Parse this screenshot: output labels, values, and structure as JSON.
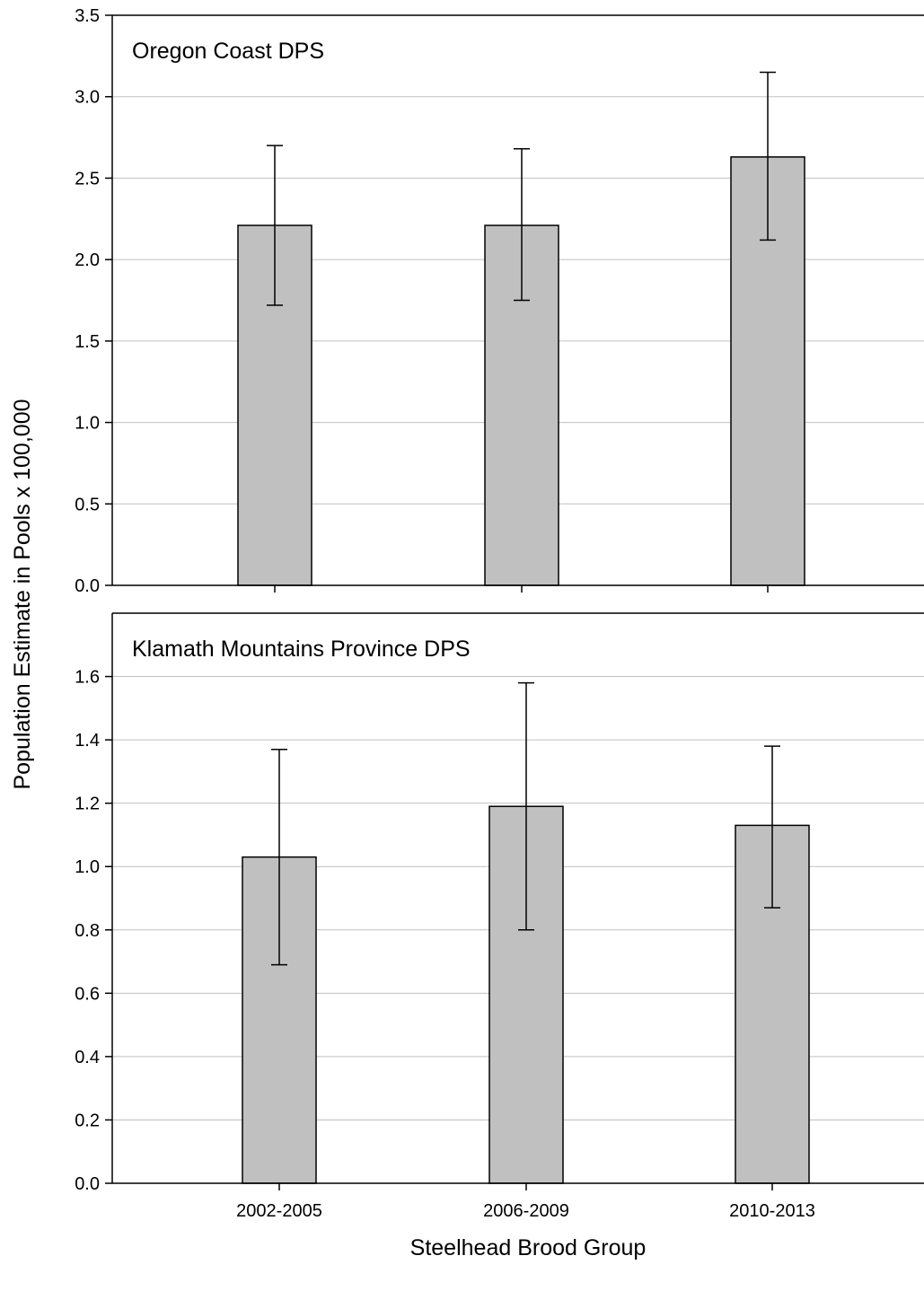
{
  "figure": {
    "ylabel": "Population Estimate in Pools x 100,000",
    "xlabel": "Steelhead Brood Group"
  },
  "colors": {
    "bar_fill": "#c0c0c0",
    "bar_stroke": "#000000",
    "grid": "#c0c0c0",
    "axis": "#000000"
  },
  "chart_data": [
    {
      "type": "bar",
      "title": "Oregon Coast DPS",
      "categories": [
        "2002-2005",
        "2006-2009",
        "2010-2013"
      ],
      "values": [
        2.21,
        2.21,
        2.63
      ],
      "error_low": [
        1.72,
        1.75,
        2.12
      ],
      "error_high": [
        2.7,
        2.68,
        3.15
      ],
      "ylim": [
        0,
        3.5
      ],
      "yticks": [
        "0.0",
        "0.5",
        "1.0",
        "1.5",
        "2.0",
        "2.5",
        "3.0",
        "3.5"
      ],
      "show_xtick_labels": false,
      "grid": true
    },
    {
      "type": "bar",
      "title": "Klamath Mountains Province DPS",
      "categories": [
        "2002-2005",
        "2006-2009",
        "2010-2013"
      ],
      "values": [
        1.03,
        1.19,
        1.13
      ],
      "error_low": [
        0.69,
        0.8,
        0.87
      ],
      "error_high": [
        1.37,
        1.58,
        1.38
      ],
      "ylim": [
        0,
        1.8
      ],
      "yticks": [
        "0.0",
        "0.2",
        "0.4",
        "0.6",
        "0.8",
        "1.0",
        "1.2",
        "1.4",
        "1.6"
      ],
      "show_xtick_labels": true,
      "grid": true
    }
  ]
}
